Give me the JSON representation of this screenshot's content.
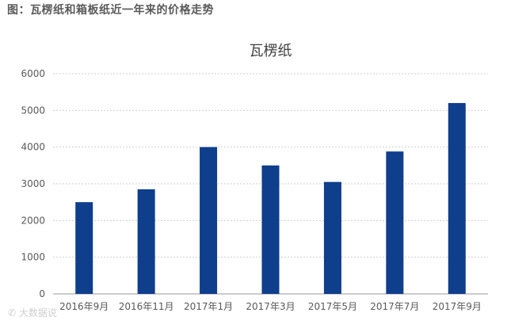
{
  "header": {
    "title": "图：瓦楞纸和箱板纸近一年来的价格走势"
  },
  "watermark": {
    "text": "大数据说"
  },
  "colors": {
    "bar": "#0e3e8c",
    "grid": "#cfcfcf",
    "axis": "#9a9a9a"
  },
  "chart_data": {
    "type": "bar",
    "title": "瓦楞纸",
    "categories": [
      "2016年9月",
      "2016年11月",
      "2017年1月",
      "2017年3月",
      "2017年5月",
      "2017年7月",
      "2017年9月"
    ],
    "series": [
      {
        "values": [
          2500,
          2850,
          4000,
          3500,
          3050,
          3880,
          5200
        ]
      }
    ],
    "ylim": [
      0,
      6000
    ],
    "yticks": [
      0,
      1000,
      2000,
      3000,
      4000,
      5000,
      6000
    ],
    "grid": "horizontal, dashed",
    "legend": "none"
  }
}
